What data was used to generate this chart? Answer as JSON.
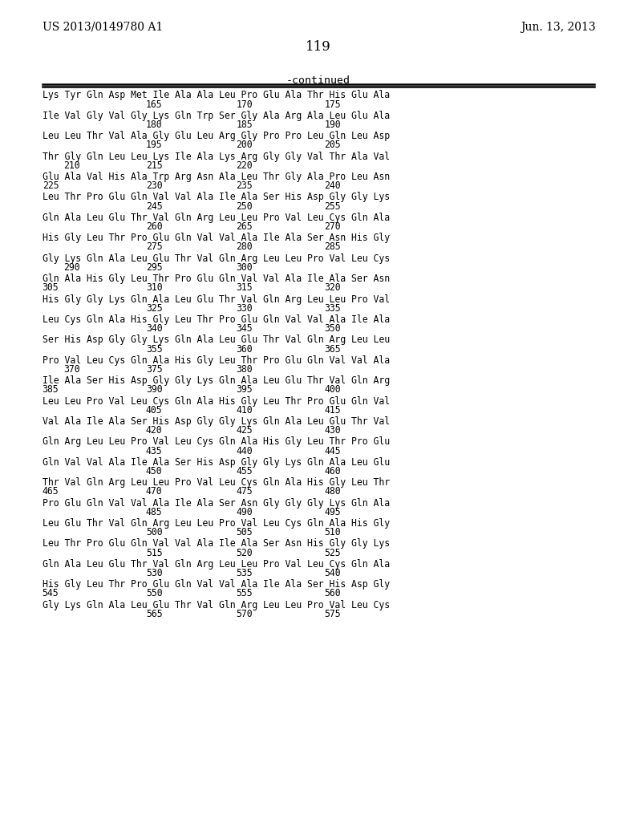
{
  "header_left": "US 2013/0149780 A1",
  "header_right": "Jun. 13, 2013",
  "page_number": "119",
  "continued_label": "-continued",
  "background_color": "#ffffff",
  "blocks": [
    {
      "seq": "Lys Tyr Gln Asp Met Ile Ala Ala Leu Pro Glu Ala Thr His Glu Ala",
      "num_labels": [
        [
          "165",
          1
        ],
        [
          "170",
          2
        ],
        [
          "175",
          3
        ]
      ]
    },
    {
      "seq": "Ile Val Gly Val Gly Lys Gln Trp Ser Gly Ala Arg Ala Leu Glu Ala",
      "num_labels": [
        [
          "180",
          1
        ],
        [
          "185",
          2
        ],
        [
          "190",
          3
        ]
      ]
    },
    {
      "seq": "Leu Leu Thr Val Ala Gly Glu Leu Arg Gly Pro Pro Leu Gln Leu Asp",
      "num_labels": [
        [
          "195",
          1
        ],
        [
          "200",
          2
        ],
        [
          "205",
          3
        ]
      ]
    },
    {
      "seq": "Thr Gly Gln Leu Leu Lys Ile Ala Lys Arg Gly Gly Val Thr Ala Val",
      "num_labels": [
        [
          "210",
          0
        ],
        [
          "215",
          1
        ],
        [
          "220",
          2
        ]
      ]
    },
    {
      "seq": "Glu Ala Val His Ala Trp Arg Asn Ala Leu Thr Gly Ala Pro Leu Asn",
      "num_labels": [
        [
          "225",
          -1
        ],
        [
          "230",
          1
        ],
        [
          "235",
          2
        ],
        [
          "240",
          3
        ]
      ]
    },
    {
      "seq": "Leu Thr Pro Glu Gln Val Val Ala Ile Ala Ser His Asp Gly Gly Lys",
      "num_labels": [
        [
          "245",
          1
        ],
        [
          "250",
          2
        ],
        [
          "255",
          3
        ]
      ]
    },
    {
      "seq": "Gln Ala Leu Glu Thr Val Gln Arg Leu Leu Pro Val Leu Cys Gln Ala",
      "num_labels": [
        [
          "260",
          1
        ],
        [
          "265",
          2
        ],
        [
          "270",
          3
        ]
      ]
    },
    {
      "seq": "His Gly Leu Thr Pro Glu Gln Val Val Ala Ile Ala Ser Asn His Gly",
      "num_labels": [
        [
          "275",
          1
        ],
        [
          "280",
          2
        ],
        [
          "285",
          3
        ]
      ]
    },
    {
      "seq": "Gly Lys Gln Ala Leu Glu Thr Val Gln Arg Leu Leu Pro Val Leu Cys",
      "num_labels": [
        [
          "290",
          0
        ],
        [
          "295",
          1
        ],
        [
          "300",
          2
        ]
      ]
    },
    {
      "seq": "Gln Ala His Gly Leu Thr Pro Glu Gln Val Val Ala Ile Ala Ser Asn",
      "num_labels": [
        [
          "305",
          -1
        ],
        [
          "310",
          1
        ],
        [
          "315",
          2
        ],
        [
          "320",
          3
        ]
      ]
    },
    {
      "seq": "His Gly Gly Lys Gln Ala Leu Glu Thr Val Gln Arg Leu Leu Pro Val",
      "num_labels": [
        [
          "325",
          1
        ],
        [
          "330",
          2
        ],
        [
          "335",
          3
        ]
      ]
    },
    {
      "seq": "Leu Cys Gln Ala His Gly Leu Thr Pro Glu Gln Val Val Ala Ile Ala",
      "num_labels": [
        [
          "340",
          1
        ],
        [
          "345",
          2
        ],
        [
          "350",
          3
        ]
      ]
    },
    {
      "seq": "Ser His Asp Gly Gly Lys Gln Ala Leu Glu Thr Val Gln Arg Leu Leu",
      "num_labels": [
        [
          "355",
          1
        ],
        [
          "360",
          2
        ],
        [
          "365",
          3
        ]
      ]
    },
    {
      "seq": "Pro Val Leu Cys Gln Ala His Gly Leu Thr Pro Glu Gln Val Val Ala",
      "num_labels": [
        [
          "370",
          0
        ],
        [
          "375",
          1
        ],
        [
          "380",
          2
        ]
      ]
    },
    {
      "seq": "Ile Ala Ser His Asp Gly Gly Lys Gln Ala Leu Glu Thr Val Gln Arg",
      "num_labels": [
        [
          "385",
          -1
        ],
        [
          "390",
          1
        ],
        [
          "395",
          2
        ],
        [
          "400",
          3
        ]
      ]
    },
    {
      "seq": "Leu Leu Pro Val Leu Cys Gln Ala His Gly Leu Thr Pro Glu Gln Val",
      "num_labels": [
        [
          "405",
          1
        ],
        [
          "410",
          2
        ],
        [
          "415",
          3
        ]
      ]
    },
    {
      "seq": "Val Ala Ile Ala Ser His Asp Gly Gly Lys Gln Ala Leu Glu Thr Val",
      "num_labels": [
        [
          "420",
          1
        ],
        [
          "425",
          2
        ],
        [
          "430",
          3
        ]
      ]
    },
    {
      "seq": "Gln Arg Leu Leu Pro Val Leu Cys Gln Ala His Gly Leu Thr Pro Glu",
      "num_labels": [
        [
          "435",
          1
        ],
        [
          "440",
          2
        ],
        [
          "445",
          3
        ]
      ]
    },
    {
      "seq": "Gln Val Val Ala Ile Ala Ser His Asp Gly Gly Lys Gln Ala Leu Glu",
      "num_labels": [
        [
          "450",
          1
        ],
        [
          "455",
          2
        ],
        [
          "460",
          3
        ]
      ]
    },
    {
      "seq": "Thr Val Gln Arg Leu Leu Pro Val Leu Cys Gln Ala His Gly Leu Thr",
      "num_labels": [
        [
          "465",
          -1
        ],
        [
          "470",
          1
        ],
        [
          "475",
          2
        ],
        [
          "480",
          3
        ]
      ]
    },
    {
      "seq": "Pro Glu Gln Val Val Ala Ile Ala Ser Asn Gly Gly Gly Lys Gln Ala",
      "num_labels": [
        [
          "485",
          1
        ],
        [
          "490",
          2
        ],
        [
          "495",
          3
        ]
      ]
    },
    {
      "seq": "Leu Glu Thr Val Gln Arg Leu Leu Pro Val Leu Cys Gln Ala His Gly",
      "num_labels": [
        [
          "500",
          1
        ],
        [
          "505",
          2
        ],
        [
          "510",
          3
        ]
      ]
    },
    {
      "seq": "Leu Thr Pro Glu Gln Val Val Ala Ile Ala Ser Asn His Gly Gly Lys",
      "num_labels": [
        [
          "515",
          1
        ],
        [
          "520",
          2
        ],
        [
          "525",
          3
        ]
      ]
    },
    {
      "seq": "Gln Ala Leu Glu Thr Val Gln Arg Leu Leu Pro Val Leu Cys Gln Ala",
      "num_labels": [
        [
          "530",
          1
        ],
        [
          "535",
          2
        ],
        [
          "540",
          3
        ]
      ]
    },
    {
      "seq": "His Gly Leu Thr Pro Glu Gln Val Val Ala Ile Ala Ser His Asp Gly",
      "num_labels": [
        [
          "545",
          -1
        ],
        [
          "550",
          1
        ],
        [
          "555",
          2
        ],
        [
          "560",
          3
        ]
      ]
    },
    {
      "seq": "Gly Lys Gln Ala Leu Glu Thr Val Gln Arg Leu Leu Pro Val Leu Cys",
      "num_labels": [
        [
          "565",
          1
        ],
        [
          "570",
          2
        ],
        [
          "575",
          3
        ]
      ]
    }
  ]
}
